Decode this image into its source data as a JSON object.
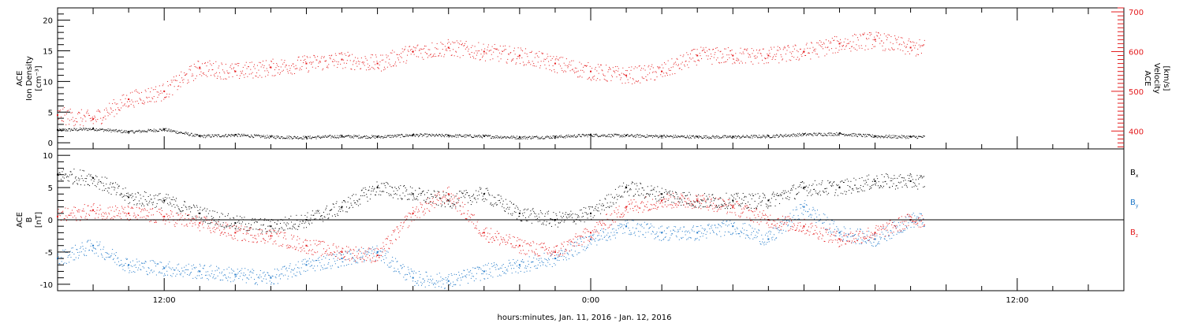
{
  "colors": {
    "black": "#000000",
    "red": "#e41a1c",
    "blue": "#1f78c8"
  },
  "x_axis": {
    "label": "hours:minutes, Jan. 11, 2016 - Jan. 12, 2016",
    "tick_labels": [
      {
        "t": 12,
        "label": "12:00"
      },
      {
        "t": 24,
        "label": "0:00"
      },
      {
        "t": 36,
        "label": "12:00"
      }
    ],
    "range_hours": [
      9.0,
      39.0
    ]
  },
  "chart_data": [
    {
      "type": "scatter",
      "panel": "top",
      "left_axis": {
        "label_lines": [
          "ACE",
          "Ion Density",
          "[cm⁻³]"
        ],
        "ylim": [
          -1,
          22
        ],
        "ticks": [
          0,
          5,
          10,
          15,
          20
        ]
      },
      "right_axis": {
        "label_lines": [
          "ACE",
          "Velocity",
          "[km/s]"
        ],
        "ylim": [
          355,
          710
        ],
        "ticks": [
          400,
          500,
          600,
          700
        ]
      },
      "grid": false,
      "series": [
        {
          "name": "Ion Density",
          "axis": "left",
          "color": "black",
          "points": [
            [
              9.0,
              2.1
            ],
            [
              10,
              2.3
            ],
            [
              11,
              1.8
            ],
            [
              12,
              2.2
            ],
            [
              13,
              1.1
            ],
            [
              14,
              1.3
            ],
            [
              15,
              1.0
            ],
            [
              16,
              0.9
            ],
            [
              17,
              1.1
            ],
            [
              18,
              1.0
            ],
            [
              19,
              1.3
            ],
            [
              20,
              1.2
            ],
            [
              21,
              1.1
            ],
            [
              22,
              0.9
            ],
            [
              23,
              1.0
            ],
            [
              24,
              1.3
            ],
            [
              25,
              1.2
            ],
            [
              26,
              1.1
            ],
            [
              27,
              1.0
            ],
            [
              28,
              1.0
            ],
            [
              29,
              1.1
            ],
            [
              30,
              1.4
            ],
            [
              31,
              1.5
            ],
            [
              32,
              1.1
            ],
            [
              33,
              1.0
            ]
          ]
        },
        {
          "name": "Velocity",
          "axis": "right",
          "color": "red",
          "points": [
            [
              9.0,
              440
            ],
            [
              10,
              430
            ],
            [
              11,
              480
            ],
            [
              12,
              500
            ],
            [
              13,
              560
            ],
            [
              14,
              550
            ],
            [
              15,
              560
            ],
            [
              16,
              570
            ],
            [
              17,
              580
            ],
            [
              18,
              570
            ],
            [
              19,
              600
            ],
            [
              20,
              610
            ],
            [
              21,
              600
            ],
            [
              22,
              590
            ],
            [
              23,
              570
            ],
            [
              24,
              550
            ],
            [
              25,
              540
            ],
            [
              26,
              550
            ],
            [
              27,
              590
            ],
            [
              28,
              590
            ],
            [
              29,
              590
            ],
            [
              30,
              600
            ],
            [
              31,
              620
            ],
            [
              32,
              630
            ],
            [
              33,
              610
            ]
          ]
        }
      ]
    },
    {
      "type": "scatter",
      "panel": "bottom",
      "left_axis": {
        "label_lines": [
          "ACE",
          "B",
          "[nT]"
        ],
        "ylim": [
          -11,
          11
        ],
        "ticks": [
          -10,
          -5,
          0,
          5,
          10
        ]
      },
      "zero_line": true,
      "grid": false,
      "legend_position": "right",
      "series": [
        {
          "name": "Bx",
          "label_main": "B",
          "label_sub": "x",
          "color": "black",
          "points": [
            [
              9.0,
              7
            ],
            [
              10,
              6.5
            ],
            [
              11,
              3.5
            ],
            [
              12,
              3
            ],
            [
              13,
              1
            ],
            [
              14,
              -0.5
            ],
            [
              15,
              -1
            ],
            [
              16,
              0
            ],
            [
              17,
              2
            ],
            [
              18,
              5
            ],
            [
              19,
              4
            ],
            [
              20,
              3
            ],
            [
              21,
              4
            ],
            [
              22,
              1
            ],
            [
              23,
              0
            ],
            [
              24,
              1
            ],
            [
              25,
              5
            ],
            [
              26,
              4
            ],
            [
              27,
              3
            ],
            [
              28,
              3
            ],
            [
              29,
              3
            ],
            [
              30,
              5
            ],
            [
              31,
              5
            ],
            [
              32,
              6
            ],
            [
              33,
              6
            ]
          ]
        },
        {
          "name": "By",
          "label_main": "B",
          "label_sub": "y",
          "color": "blue",
          "points": [
            [
              9.0,
              -6
            ],
            [
              10,
              -4
            ],
            [
              11,
              -7
            ],
            [
              12,
              -7.5
            ],
            [
              13,
              -8
            ],
            [
              14,
              -8.5
            ],
            [
              15,
              -9
            ],
            [
              16,
              -7
            ],
            [
              17,
              -6
            ],
            [
              18,
              -5
            ],
            [
              19,
              -9
            ],
            [
              20,
              -9.5
            ],
            [
              21,
              -8
            ],
            [
              22,
              -7
            ],
            [
              23,
              -6
            ],
            [
              24,
              -3
            ],
            [
              25,
              -1
            ],
            [
              26,
              -2
            ],
            [
              27,
              -2
            ],
            [
              28,
              -1
            ],
            [
              29,
              -3
            ],
            [
              30,
              2
            ],
            [
              31,
              -2
            ],
            [
              32,
              -3
            ],
            [
              33,
              0
            ]
          ]
        },
        {
          "name": "Bz",
          "label_main": "B",
          "label_sub": "z",
          "color": "red",
          "points": [
            [
              9.0,
              0.5
            ],
            [
              10,
              1.5
            ],
            [
              11,
              1
            ],
            [
              12,
              0.5
            ],
            [
              13,
              -0.5
            ],
            [
              14,
              -2
            ],
            [
              15,
              -2.5
            ],
            [
              16,
              -4
            ],
            [
              17,
              -5
            ],
            [
              18,
              -5.5
            ],
            [
              19,
              1
            ],
            [
              20,
              4
            ],
            [
              21,
              -2
            ],
            [
              22,
              -4
            ],
            [
              23,
              -5
            ],
            [
              24,
              -2
            ],
            [
              25,
              2
            ],
            [
              26,
              3
            ],
            [
              27,
              3
            ],
            [
              28,
              2
            ],
            [
              29,
              0
            ],
            [
              30,
              -1
            ],
            [
              31,
              -3
            ],
            [
              32,
              -2
            ],
            [
              33,
              0
            ]
          ]
        }
      ]
    }
  ]
}
